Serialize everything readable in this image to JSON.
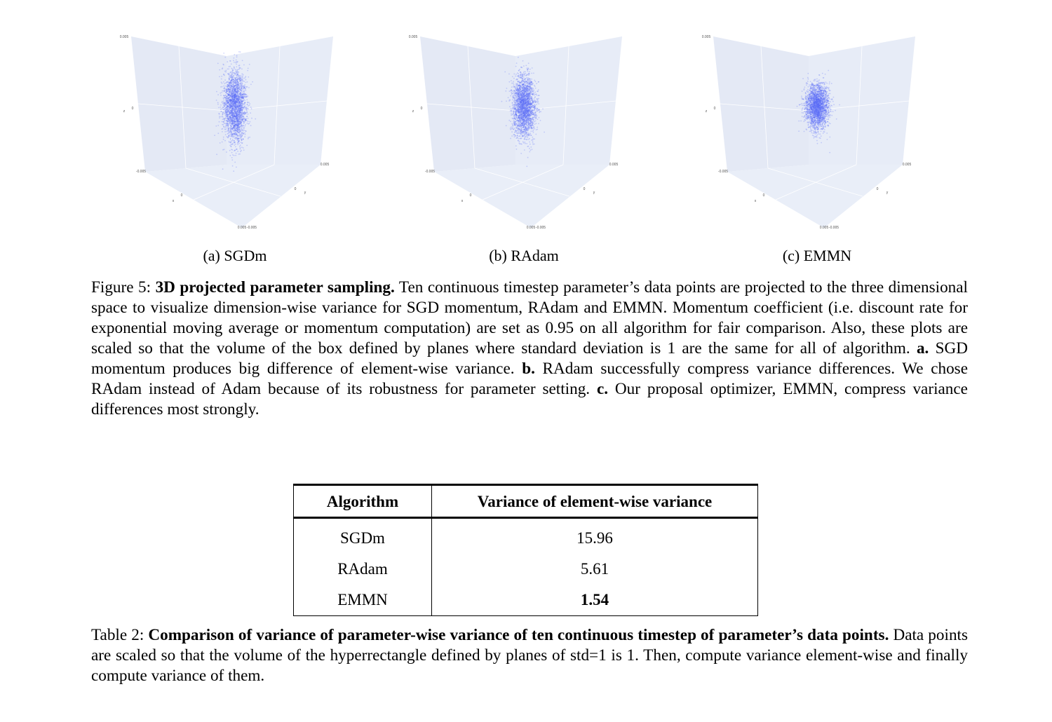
{
  "figure": {
    "panels": [
      {
        "label": "(a) SGDm",
        "spread_x": 1.0,
        "spread_y": 1.0,
        "spread_z": 1.0
      },
      {
        "label": "(b) RAdam",
        "spread_x": 1.0,
        "spread_y": 1.0,
        "spread_z": 0.82
      },
      {
        "label": "(c) EMMN",
        "spread_x": 1.0,
        "spread_y": 1.0,
        "spread_z": 0.62
      }
    ],
    "axis_ticks": {
      "z_top": "0.005",
      "z_mid": "0",
      "z_label": "z",
      "x_left": "-0.005",
      "x_mid": "0",
      "x_label": "x",
      "y_right": "0.005",
      "y_mid": "0",
      "y_label": "y",
      "bottom_a": "0.005",
      "bottom_b": "-0.005"
    },
    "point_color": "#5B6CF7",
    "caption": {
      "prefix": "Figure 5: ",
      "title": "3D projected parameter sampling.",
      "text1": " Ten continuous timestep parameter’s data points are projected to the three dimensional space to visualize dimension-wise variance for SGD momentum, RAdam and EMMN. Momentum coefficient (i.e. discount rate for exponential moving average or momentum computation) are set as 0.95 on all algorithm for fair comparison.  Also, these plots are scaled so that the volume of the box defined by planes where standard deviation is 1 are the same for all of algorithm. ",
      "a": "a.",
      "text_a": " SGD momentum produces big difference of element-wise variance. ",
      "b": "b.",
      "text_b": " RAdam successfully compress variance differences. We chose RAdam instead of Adam because of its robustness for parameter setting. ",
      "c": "c.",
      "text_c": " Our proposal optimizer, EMMN, compress variance differences most strongly."
    }
  },
  "table": {
    "headers": [
      "Algorithm",
      "Variance of element-wise variance"
    ],
    "rows": [
      {
        "algorithm": "SGDm",
        "value": "15.96"
      },
      {
        "algorithm": "RAdam",
        "value": "5.61"
      },
      {
        "algorithm": "EMMN",
        "value": "1.54"
      }
    ],
    "caption": {
      "prefix": "Table 2: ",
      "title": "Comparison of variance of parameter-wise variance of ten continuous timestep of parameter’s data points.",
      "text": " Data points are scaled so that the volume of the hyperrectangle defined by planes of std=1 is 1. Then, compute variance element-wise and finally compute variance of them."
    }
  }
}
